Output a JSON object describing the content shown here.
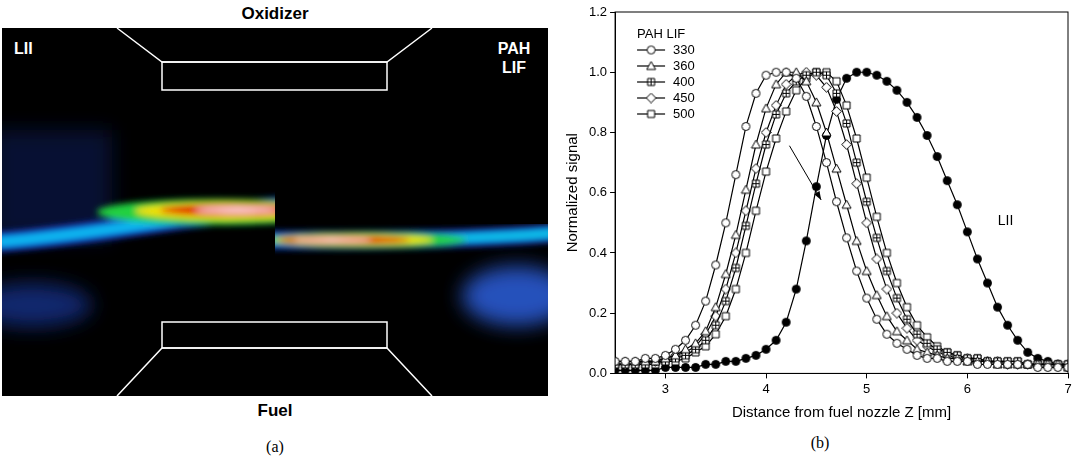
{
  "figure": {
    "panel_a": {
      "caption": "(a)",
      "top_label": "Oxidizer",
      "bottom_label": "Fuel",
      "left_label": "LII",
      "right_label": "PAH LIF"
    }
  },
  "chart_data": {
    "type": "line",
    "caption": "(b)",
    "x_label": "Distance from fuel nozzle Z [mm]",
    "y_label": "Normalized signal",
    "x": [
      2.5,
      2.6,
      2.7,
      2.8,
      2.9,
      3.0,
      3.1,
      3.2,
      3.3,
      3.4,
      3.5,
      3.6,
      3.7,
      3.8,
      3.9,
      4.0,
      4.1,
      4.2,
      4.3,
      4.4,
      4.5,
      4.6,
      4.7,
      4.8,
      4.9,
      5.0,
      5.1,
      5.2,
      5.3,
      5.4,
      5.5,
      5.6,
      5.7,
      5.8,
      5.9,
      6.0,
      6.1,
      6.2,
      6.3,
      6.4,
      6.5,
      6.6,
      6.7,
      6.8,
      6.9,
      7.0
    ],
    "xlim": [
      2.5,
      7
    ],
    "xticks": [
      3,
      4,
      5,
      6,
      7
    ],
    "ylim": [
      0,
      1.2
    ],
    "yticks": [
      {
        "value": 0,
        "label": "0.0"
      },
      0.2,
      0.4,
      0.6,
      0.8,
      {
        "value": 1,
        "label": "1.0"
      },
      1.2
    ],
    "grid": false,
    "legend": "upper left",
    "legend_title": "PAH LIF",
    "annotations": [
      {
        "text": "LII"
      }
    ],
    "series": [
      {
        "name": "330",
        "color": "#000000",
        "marker": "circle",
        "values": [
          0.04,
          0.04,
          0.04,
          0.05,
          0.05,
          0.06,
          0.08,
          0.11,
          0.16,
          0.24,
          0.36,
          0.5,
          0.66,
          0.82,
          0.93,
          0.99,
          1.0,
          1.0,
          0.98,
          0.92,
          0.82,
          0.7,
          0.57,
          0.45,
          0.34,
          0.25,
          0.18,
          0.13,
          0.1,
          0.08,
          0.06,
          0.05,
          0.05,
          0.04,
          0.04,
          0.04,
          0.03,
          0.03,
          0.03,
          0.03,
          0.03,
          0.03,
          0.02,
          0.02,
          0.02,
          0.02
        ]
      },
      {
        "name": "360",
        "color": "#000000",
        "marker": "triangle",
        "values": [
          0.04,
          0.04,
          0.04,
          0.04,
          0.04,
          0.05,
          0.06,
          0.08,
          0.1,
          0.14,
          0.22,
          0.33,
          0.46,
          0.61,
          0.76,
          0.88,
          0.96,
          1.0,
          1.0,
          0.97,
          0.9,
          0.8,
          0.68,
          0.56,
          0.44,
          0.34,
          0.26,
          0.19,
          0.14,
          0.11,
          0.08,
          0.07,
          0.06,
          0.05,
          0.05,
          0.04,
          0.04,
          0.04,
          0.03,
          0.03,
          0.03,
          0.03,
          0.03,
          0.03,
          0.03,
          0.02
        ]
      },
      {
        "name": "400",
        "color": "#000000",
        "marker": "square_plus",
        "values": [
          0.03,
          0.03,
          0.03,
          0.03,
          0.04,
          0.04,
          0.05,
          0.06,
          0.08,
          0.11,
          0.16,
          0.24,
          0.35,
          0.49,
          0.63,
          0.76,
          0.86,
          0.93,
          0.97,
          0.99,
          1.0,
          0.99,
          0.93,
          0.83,
          0.7,
          0.57,
          0.45,
          0.34,
          0.25,
          0.18,
          0.13,
          0.1,
          0.08,
          0.07,
          0.06,
          0.05,
          0.05,
          0.04,
          0.04,
          0.04,
          0.04,
          0.03,
          0.03,
          0.03,
          0.03,
          0.03
        ]
      },
      {
        "name": "450",
        "color": "#000000",
        "marker": "diamond",
        "values": [
          0.03,
          0.03,
          0.03,
          0.04,
          0.04,
          0.05,
          0.06,
          0.07,
          0.09,
          0.13,
          0.19,
          0.28,
          0.4,
          0.54,
          0.68,
          0.8,
          0.89,
          0.96,
          0.99,
          1.0,
          0.99,
          0.95,
          0.87,
          0.76,
          0.63,
          0.5,
          0.38,
          0.28,
          0.2,
          0.15,
          0.11,
          0.09,
          0.07,
          0.06,
          0.05,
          0.05,
          0.04,
          0.04,
          0.04,
          0.03,
          0.03,
          0.03,
          0.03,
          0.03,
          0.03,
          0.03
        ]
      },
      {
        "name": "500",
        "color": "#000000",
        "marker": "square",
        "values": [
          0.03,
          0.03,
          0.03,
          0.03,
          0.03,
          0.04,
          0.04,
          0.05,
          0.07,
          0.09,
          0.13,
          0.19,
          0.28,
          0.4,
          0.54,
          0.67,
          0.78,
          0.87,
          0.94,
          0.98,
          1.0,
          1.0,
          0.97,
          0.89,
          0.78,
          0.65,
          0.52,
          0.4,
          0.3,
          0.22,
          0.16,
          0.12,
          0.09,
          0.07,
          0.06,
          0.05,
          0.05,
          0.04,
          0.04,
          0.04,
          0.04,
          0.03,
          0.03,
          0.03,
          0.03,
          0.03
        ]
      },
      {
        "name": "LII",
        "color": "#000000",
        "marker": "filled_circle",
        "values": [
          0.01,
          0.01,
          0.01,
          0.01,
          0.01,
          0.02,
          0.02,
          0.02,
          0.02,
          0.03,
          0.03,
          0.04,
          0.04,
          0.05,
          0.06,
          0.08,
          0.11,
          0.17,
          0.28,
          0.44,
          0.62,
          0.79,
          0.91,
          0.98,
          1.0,
          1.0,
          0.99,
          0.97,
          0.94,
          0.9,
          0.85,
          0.79,
          0.72,
          0.64,
          0.56,
          0.47,
          0.38,
          0.3,
          0.22,
          0.16,
          0.11,
          0.07,
          0.05,
          0.04,
          0.03,
          0.02
        ]
      }
    ]
  }
}
